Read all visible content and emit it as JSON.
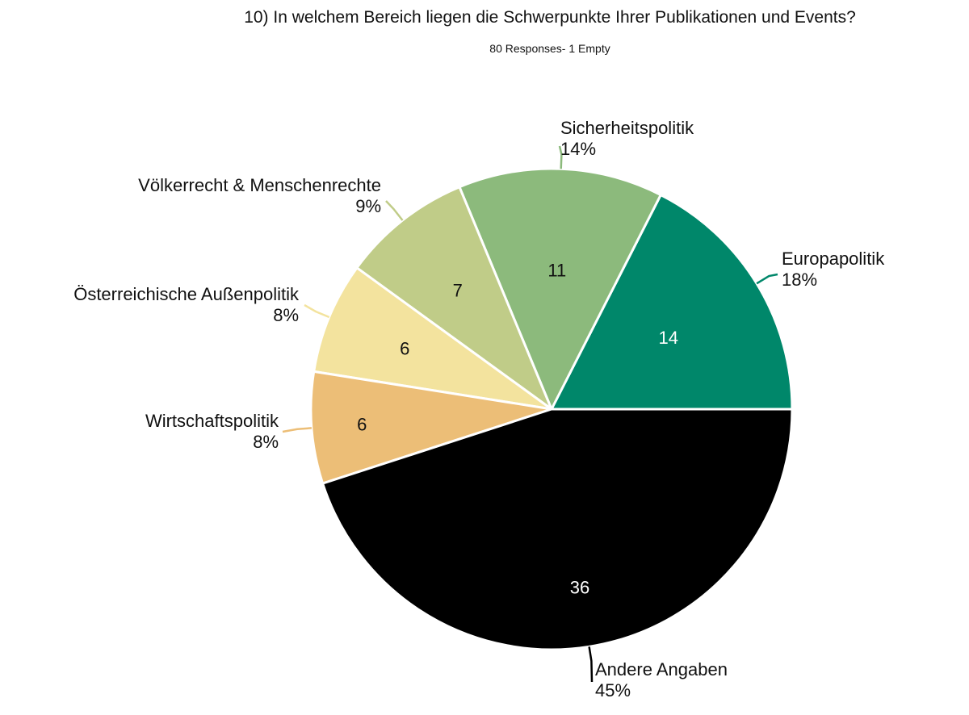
{
  "chart_data": {
    "type": "pie",
    "title": "10) In welchem Bereich liegen die Schwerpunkte Ihrer Publikationen und Events?",
    "subtitle": "80 Responses- 1 Empty",
    "slices": [
      {
        "label": "Europapolitik",
        "value": 14,
        "percent": "18%",
        "color": "#00876A",
        "value_color": "#ffffff"
      },
      {
        "label": "Sicherheitspolitik",
        "value": 11,
        "percent": "14%",
        "color": "#8CBA7C",
        "value_color": "#111111"
      },
      {
        "label": "Völkerrecht & Menschenrechte",
        "value": 7,
        "percent": "9%",
        "color": "#C0CC88",
        "value_color": "#111111"
      },
      {
        "label": "Österreichische Außenpolitik",
        "value": 6,
        "percent": "8%",
        "color": "#F3E39E",
        "value_color": "#111111"
      },
      {
        "label": "Wirtschaftspolitik",
        "value": 6,
        "percent": "8%",
        "color": "#ECBE77",
        "value_color": "#111111"
      },
      {
        "label": "Andere Angaben",
        "value": 36,
        "percent": "45%",
        "color": "#000000",
        "value_color": "#ffffff"
      }
    ]
  }
}
